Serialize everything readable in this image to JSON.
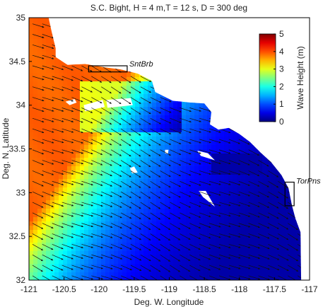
{
  "chart_data": {
    "type": "heatmap",
    "title": "S.C. Bight, H = 4 m,T = 12 s, D = 300 deg",
    "xlabel": "Deg. W. Longitude",
    "ylabel": "Deg. N. Latitude",
    "xlim": [
      -121,
      -117
    ],
    "ylim": [
      32,
      35
    ],
    "xticks": [
      "-121",
      "-120.5",
      "-120",
      "-119.5",
      "-119",
      "-118.5",
      "-118",
      "-117.5",
      "-117"
    ],
    "yticks": [
      "32",
      "32.5",
      "33",
      "33.5",
      "34",
      "34.5",
      "35"
    ],
    "xtick_values": [
      -121,
      -120.5,
      -120,
      -119.5,
      -119,
      -118.5,
      -118,
      -117.5,
      -117
    ],
    "ytick_values": [
      32,
      32.5,
      33,
      33.5,
      34,
      34.5,
      35
    ],
    "colorbar": {
      "label": "Wave Height (m)",
      "range": [
        0,
        5
      ],
      "ticks": [
        "0",
        "1",
        "2",
        "3",
        "4",
        "5"
      ],
      "tick_values": [
        0,
        1,
        2,
        3,
        4,
        5
      ],
      "colormap": "jet",
      "location": "top-right"
    },
    "incident_wave": {
      "height_m": 4,
      "period_s": 12,
      "direction_deg": 300
    },
    "deep_water_wave_height_m": 3.9,
    "vector_field": "wave direction arrows on a regular grid",
    "annotations": [
      {
        "label": "SntBrb",
        "lon_range": [
          -120.15,
          -119.6
        ],
        "lat_range": [
          34.38,
          34.45
        ]
      },
      {
        "label": "TorPns",
        "lon_range": [
          -117.35,
          -117.22
        ],
        "lat_range": [
          32.85,
          33.12
        ]
      }
    ],
    "land_color": "#ffffff",
    "grid": false
  }
}
